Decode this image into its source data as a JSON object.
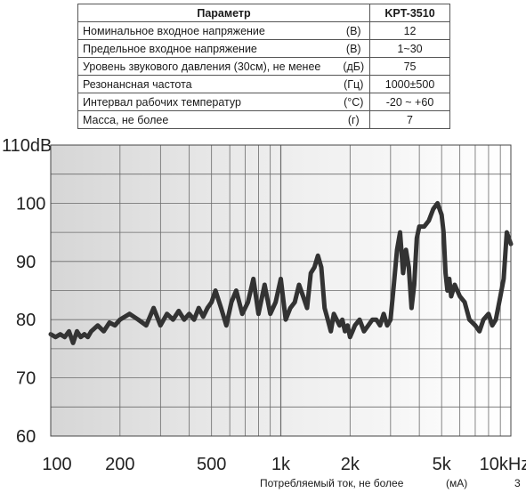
{
  "table": {
    "header": {
      "param": "Параметр",
      "model": "KPT-3510"
    },
    "rows": [
      {
        "name": "Номинальное входное напряжение",
        "unit": "(В)",
        "value": "12"
      },
      {
        "name": "Предельное входное напряжение",
        "unit": "(В)",
        "value": "1~30"
      },
      {
        "name": "Уровень звукового давления (30см), не менее",
        "unit": "(дБ)",
        "value": "75"
      },
      {
        "name": "Резонансная частота",
        "unit": "(Гц)",
        "value": "1000±500"
      },
      {
        "name": "Интервал рабочих температур",
        "unit": "(°С)",
        "value": "-20 ~ +60"
      },
      {
        "name": "Масса, не более",
        "unit": "(г)",
        "value": "7"
      }
    ]
  },
  "footer": {
    "label": "Потребляемый ток, не более",
    "unit": "(мА)",
    "value": "3"
  },
  "colors": {
    "line": "#333333",
    "grid": "#555555",
    "background_dark": "#dcdcdc",
    "background_light": "#fafafa"
  },
  "chart_data": {
    "type": "line",
    "title": "",
    "xlabel": "",
    "ylabel": "",
    "xscale": "log",
    "xlim": [
      100,
      10000
    ],
    "ylim": [
      60,
      110
    ],
    "grid": true,
    "legend": "none",
    "xticks": [
      {
        "value": 100,
        "label": "100"
      },
      {
        "value": 200,
        "label": "200"
      },
      {
        "value": 500,
        "label": "500"
      },
      {
        "value": 1000,
        "label": "1k"
      },
      {
        "value": 2000,
        "label": "2k"
      },
      {
        "value": 5000,
        "label": "5k"
      },
      {
        "value": 10000,
        "label": "10kHz"
      }
    ],
    "yticks": [
      {
        "value": 60,
        "label": "60"
      },
      {
        "value": 70,
        "label": "70"
      },
      {
        "value": 80,
        "label": "80"
      },
      {
        "value": 90,
        "label": "90"
      },
      {
        "value": 100,
        "label": "100"
      },
      {
        "value": 110,
        "label": "110dB"
      }
    ],
    "series": [
      {
        "x": [
          100,
          105,
          110,
          115,
          120,
          125,
          130,
          135,
          140,
          145,
          150,
          160,
          170,
          180,
          190,
          200,
          210,
          220,
          240,
          260,
          280,
          300,
          320,
          340,
          360,
          380,
          400,
          420,
          440,
          460,
          480,
          500,
          520,
          550,
          580,
          610,
          640,
          680,
          720,
          760,
          800,
          850,
          900,
          950,
          1000,
          1050,
          1100,
          1150,
          1200,
          1250,
          1300,
          1350,
          1400,
          1450,
          1500,
          1550,
          1600,
          1650,
          1700,
          1750,
          1800,
          1850,
          1900,
          1950,
          2000,
          2050,
          2100,
          2200,
          2300,
          2400,
          2500,
          2600,
          2700,
          2800,
          2900,
          3000,
          3100,
          3200,
          3300,
          3400,
          3500,
          3600,
          3700,
          3800,
          3900,
          4000,
          4200,
          4400,
          4600,
          4800,
          5000,
          5100,
          5200,
          5300,
          5400,
          5500,
          5700,
          6000,
          6300,
          6600,
          7000,
          7300,
          7600,
          8000,
          8300,
          8600,
          9000,
          9300,
          9600,
          10000
        ],
        "y": [
          77.5,
          77,
          77.5,
          77,
          78,
          76,
          78,
          77,
          77.5,
          77,
          78,
          79,
          78,
          79.5,
          79,
          80,
          80.5,
          81,
          80,
          79,
          82,
          79,
          81,
          80,
          81.5,
          80,
          81,
          80,
          82,
          80.5,
          82,
          83,
          85,
          82,
          79,
          83,
          85,
          81,
          83,
          87,
          81,
          86,
          81,
          83,
          87,
          80,
          82,
          83,
          86,
          84,
          82,
          88,
          89,
          91,
          89,
          82,
          80,
          78,
          81,
          80,
          79,
          80,
          78,
          79,
          77,
          78,
          79,
          80,
          78,
          79,
          80,
          80,
          79,
          81,
          79,
          80,
          86,
          92,
          95,
          88,
          92,
          89,
          82,
          86,
          94,
          96,
          96,
          97,
          99,
          100,
          98,
          95,
          88,
          85,
          87,
          84,
          86,
          84,
          83,
          80,
          79,
          78,
          80,
          81,
          79,
          80,
          84,
          87,
          95,
          93
        ]
      }
    ]
  }
}
